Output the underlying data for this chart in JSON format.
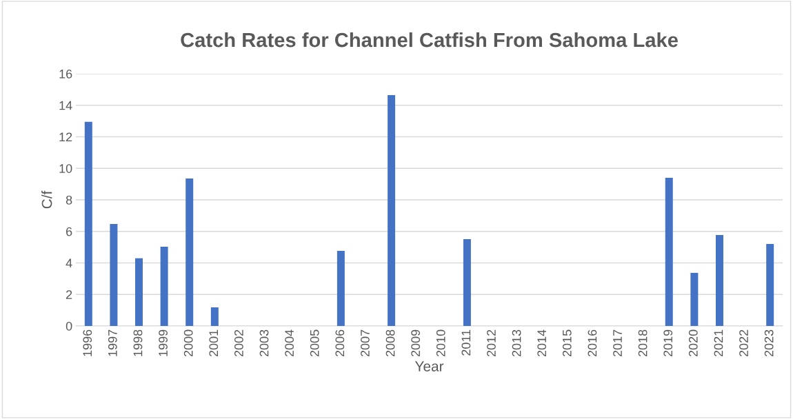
{
  "chart_data": {
    "type": "bar",
    "title": "Catch Rates for Channel Catfish From Sahoma Lake",
    "xlabel": "Year",
    "ylabel": "C/f",
    "categories": [
      "1996",
      "1997",
      "1998",
      "1999",
      "2000",
      "2001",
      "2002",
      "2003",
      "2004",
      "2005",
      "2006",
      "2007",
      "2008",
      "2009",
      "2010",
      "2011",
      "2012",
      "2013",
      "2014",
      "2015",
      "2016",
      "2017",
      "2018",
      "2019",
      "2020",
      "2021",
      "2022",
      "2023"
    ],
    "values": [
      12.95,
      6.47,
      4.3,
      5.03,
      9.36,
      1.18,
      null,
      null,
      null,
      null,
      4.77,
      null,
      14.64,
      null,
      null,
      5.51,
      null,
      null,
      null,
      null,
      null,
      null,
      null,
      9.4,
      3.37,
      5.77,
      null,
      5.2
    ],
    "color": "#4472c4",
    "ylim": [
      0,
      16
    ],
    "yticks": [
      0,
      2,
      4,
      6,
      8,
      10,
      12,
      14,
      16
    ],
    "grid": "y",
    "legend": false
  }
}
